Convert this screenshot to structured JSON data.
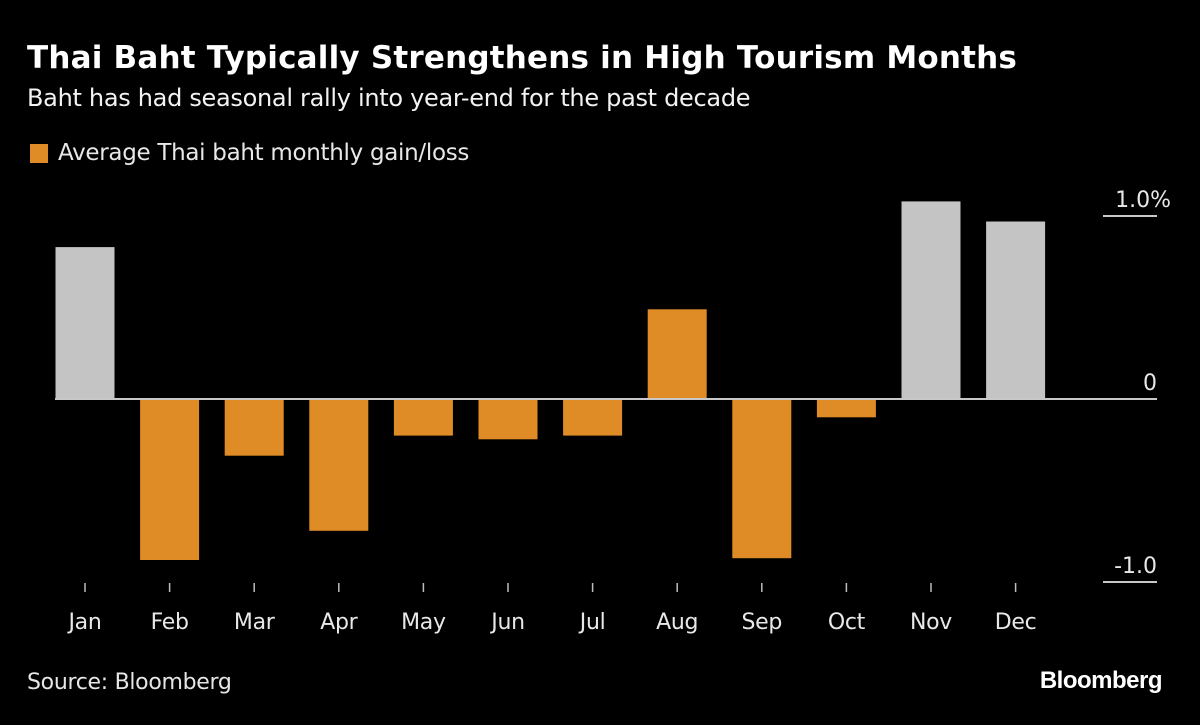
{
  "header": {
    "title": "Thai Baht Typically Strengthens in High Tourism Months",
    "subtitle": "Baht has had seasonal rally into year-end for the past decade"
  },
  "legend": {
    "label": "Average Thai baht monthly gain/loss",
    "color": "#e08c26"
  },
  "footer": {
    "source": "Source: Bloomberg",
    "brand": "Bloomberg"
  },
  "colors": {
    "background": "#000000",
    "negative_or_default": "#e08c26",
    "highlight": "#c4c4c4",
    "axis": "#c8c8c8"
  },
  "chart_data": {
    "type": "bar",
    "title": "Thai Baht Typically Strengthens in High Tourism Months",
    "subtitle": "Baht has had seasonal rally into year-end for the past decade",
    "xlabel": "",
    "ylabel": "",
    "categories": [
      "Jan",
      "Feb",
      "Mar",
      "Apr",
      "May",
      "Jun",
      "Jul",
      "Aug",
      "Sep",
      "Oct",
      "Nov",
      "Dec"
    ],
    "series": [
      {
        "name": "Average Thai baht monthly gain/loss",
        "unit": "%",
        "values": [
          0.83,
          -0.88,
          -0.31,
          -0.72,
          -0.2,
          -0.22,
          -0.2,
          0.49,
          -0.87,
          -0.1,
          1.08,
          0.97
        ],
        "highlighted": [
          true,
          false,
          false,
          false,
          false,
          false,
          false,
          false,
          false,
          false,
          true,
          true
        ]
      }
    ],
    "ylim": [
      -1.0,
      1.0
    ],
    "yticks": [
      {
        "value": 1.0,
        "label": "1.0%"
      },
      {
        "value": 0,
        "label": "0"
      },
      {
        "value": -1.0,
        "label": "-1.0"
      }
    ],
    "y_axis_side": "right",
    "grid": false,
    "legend_position": "top-left"
  }
}
